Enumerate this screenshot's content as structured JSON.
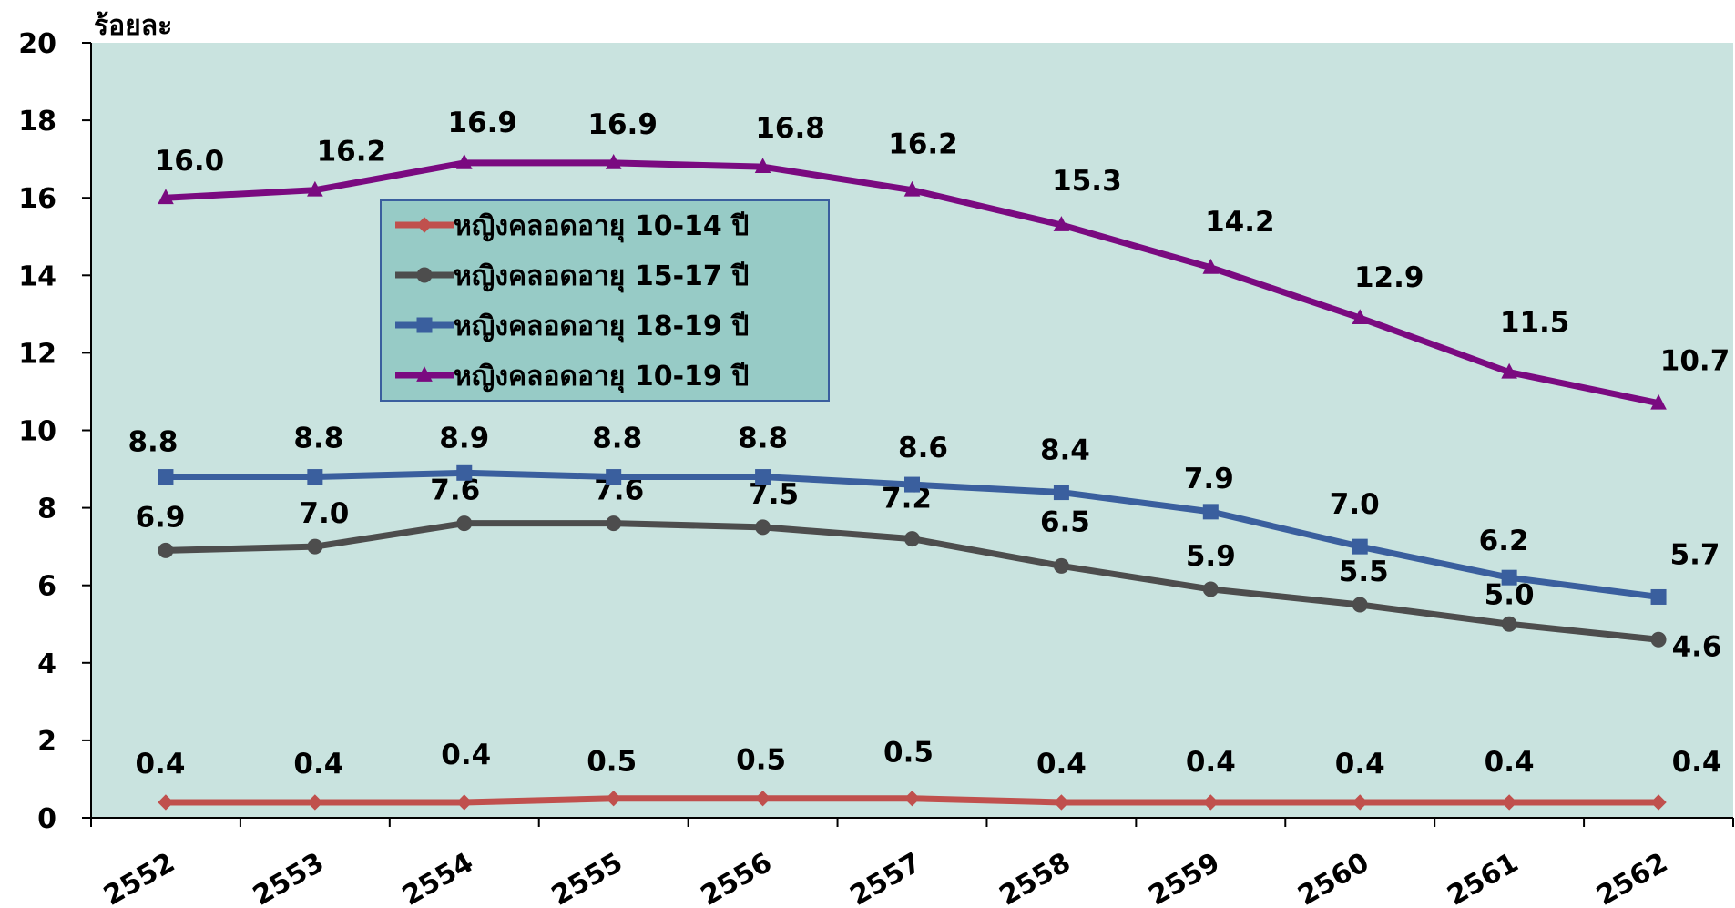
{
  "chart_data": {
    "type": "line",
    "ylabel": "ร้อยละ",
    "ylim": [
      0,
      20
    ],
    "yticks": [
      0,
      2,
      4,
      6,
      8,
      10,
      12,
      14,
      16,
      18,
      20
    ],
    "categories": [
      "2552",
      "2553",
      "2554",
      "2555",
      "2556",
      "2557",
      "2558",
      "2559",
      "2560",
      "2561",
      "2562"
    ],
    "grid": false,
    "legend_position": "upper-left inside plot",
    "plot_background": "#c9e3df",
    "series": [
      {
        "name": "หญิงคลอดอายุ 10-14 ปี",
        "values": [
          0.4,
          0.4,
          0.4,
          0.5,
          0.5,
          0.5,
          0.4,
          0.4,
          0.4,
          0.4,
          0.4
        ],
        "labels": [
          "0.4",
          "0.4",
          "0.4",
          "0.5",
          "0.5",
          "0.5",
          "0.4",
          "0.4",
          "0.4",
          "0.4",
          "0.4"
        ],
        "color": "#c0504d",
        "marker": "diamond"
      },
      {
        "name": "หญิงคลอดอายุ 15-17 ปี",
        "values": [
          6.9,
          7.0,
          7.6,
          7.6,
          7.5,
          7.2,
          6.5,
          5.9,
          5.5,
          5.0,
          4.6
        ],
        "labels": [
          "6.9",
          "7.0",
          "7.6",
          "7.6",
          "7.5",
          "7.2",
          "6.5",
          "5.9",
          "5.5",
          "5.0",
          "4.6"
        ],
        "color": "#4d4d4d",
        "marker": "circle"
      },
      {
        "name": "หญิงคลอดอายุ 18-19 ปี",
        "values": [
          8.8,
          8.8,
          8.9,
          8.8,
          8.8,
          8.6,
          8.4,
          7.9,
          7.0,
          6.2,
          5.7
        ],
        "labels": [
          "8.8",
          "8.8",
          "8.9",
          "8.8",
          "8.8",
          "8.6",
          "8.4",
          "7.9",
          "7.0",
          "6.2",
          "5.7"
        ],
        "color": "#3a5f9e",
        "marker": "square"
      },
      {
        "name": "หญิงคลอดอายุ 10-19 ปี",
        "values": [
          16.0,
          16.2,
          16.9,
          16.9,
          16.8,
          16.2,
          15.3,
          14.2,
          12.9,
          11.5,
          10.7
        ],
        "labels": [
          "16.0",
          "16.2",
          "16.9",
          "16.9",
          "16.8",
          "16.2",
          "15.3",
          "14.2",
          "12.9",
          "11.5",
          "10.7"
        ],
        "color": "#7a0a80",
        "marker": "triangle"
      }
    ]
  }
}
